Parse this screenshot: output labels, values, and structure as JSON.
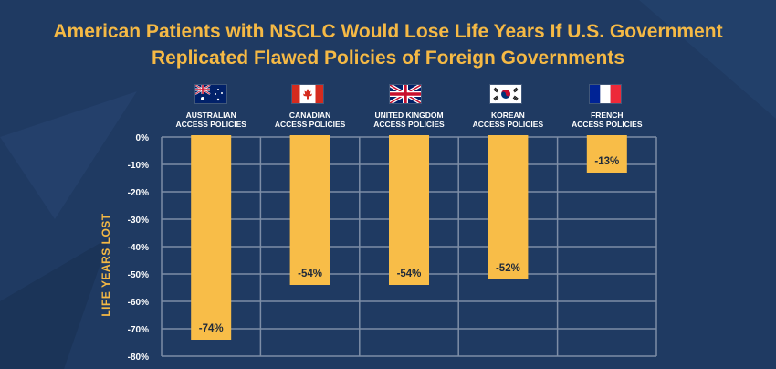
{
  "title_line1": "American Patients with NSCLC Would Lose Life Years If U.S. Government",
  "title_line2": "Replicated Flawed Policies of Foreign Governments",
  "colors": {
    "background": "#1f3a62",
    "accent": "#f5b945",
    "bar": "#f8bd48",
    "grid": "#7d8da6",
    "text": "#ffffff"
  },
  "chart_data": {
    "type": "bar",
    "categories": [
      "AUSTRALIAN ACCESS POLICIES",
      "CANADIAN ACCESS POLICIES",
      "UNITED KINGDOM ACCESS POLICIES",
      "KOREAN ACCESS POLICIES",
      "FRENCH ACCESS POLICIES"
    ],
    "category_lines": [
      [
        "AUSTRALIAN",
        "ACCESS POLICIES"
      ],
      [
        "CANADIAN",
        "ACCESS POLICIES"
      ],
      [
        "UNITED KINGDOM",
        "ACCESS POLICIES"
      ],
      [
        "KOREAN",
        "ACCESS POLICIES"
      ],
      [
        "FRENCH",
        "ACCESS POLICIES"
      ]
    ],
    "flags": [
      "australia-flag-icon",
      "canada-flag-icon",
      "uk-flag-icon",
      "korea-flag-icon",
      "france-flag-icon"
    ],
    "values": [
      -74,
      -54,
      -54,
      -52,
      -13
    ],
    "data_labels": [
      "-74%",
      "-54%",
      "-54%",
      "-52%",
      "-13%"
    ],
    "ylabel": "LIFE YEARS LOST",
    "ylim": [
      -80,
      0
    ],
    "yticks": [
      0,
      -10,
      -20,
      -30,
      -40,
      -50,
      -60,
      -70,
      -80
    ],
    "ytick_labels": [
      "0%",
      "-10%",
      "-20%",
      "-30%",
      "-40%",
      "-50%",
      "-60%",
      "-70%",
      "-80%"
    ],
    "grid": true
  }
}
